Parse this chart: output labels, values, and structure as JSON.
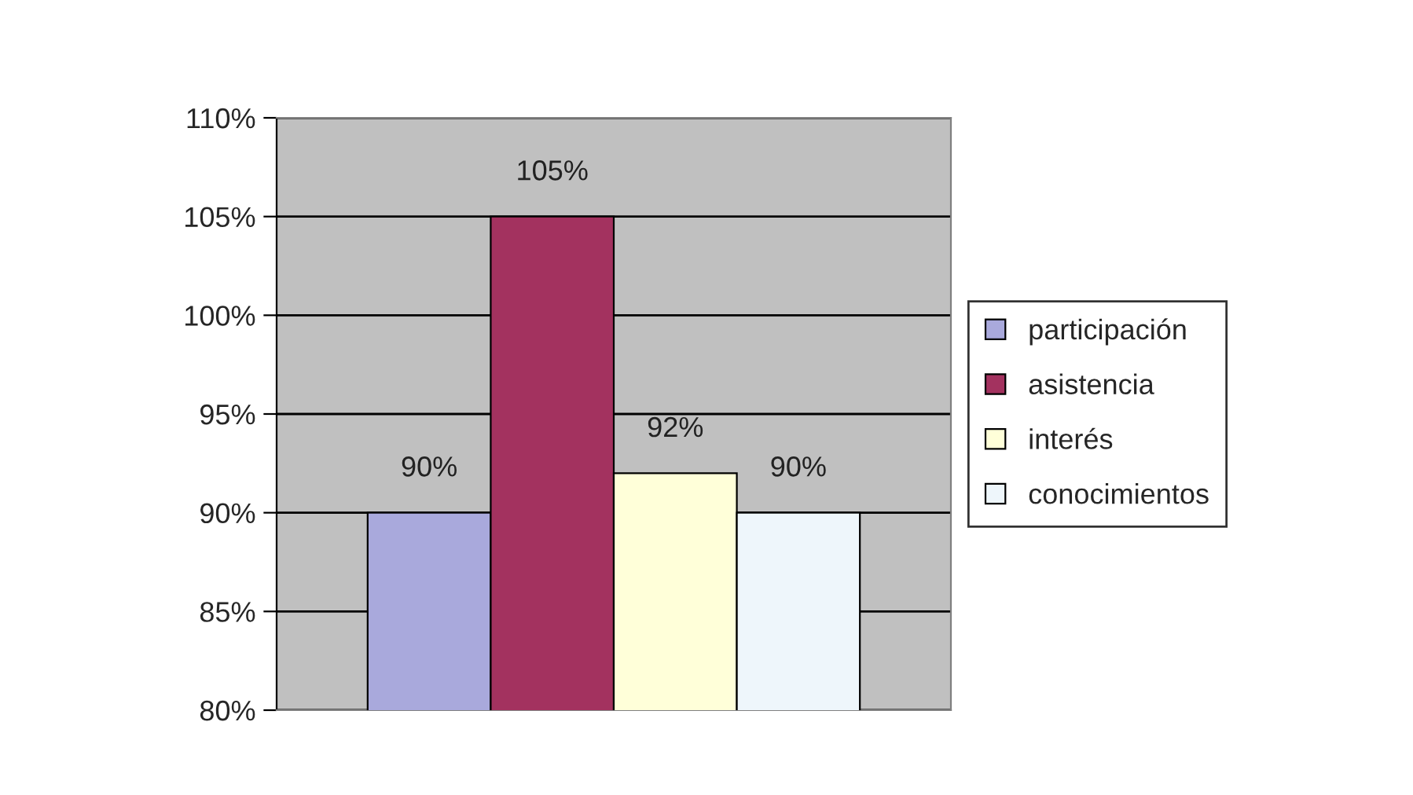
{
  "chart_data": {
    "type": "bar",
    "categories": [
      null
    ],
    "series": [
      {
        "name": "participación",
        "color": "#a9a9dc",
        "values": [
          90
        ],
        "value_labels": [
          "90%"
        ]
      },
      {
        "name": "asistencia",
        "color": "#a3325f",
        "values": [
          105
        ],
        "value_labels": [
          "105%"
        ]
      },
      {
        "name": "interés",
        "color": "#ffffd9",
        "values": [
          92
        ],
        "value_labels": [
          "92%"
        ]
      },
      {
        "name": "conocimientos",
        "color": "#eef6fb",
        "values": [
          90
        ],
        "value_labels": [
          "90%"
        ]
      }
    ],
    "ylim": [
      80,
      110
    ],
    "yticks": [
      {
        "value": 80,
        "label": "80%"
      },
      {
        "value": 85,
        "label": "85%"
      },
      {
        "value": 90,
        "label": "90%"
      },
      {
        "value": 95,
        "label": "95%"
      },
      {
        "value": 100,
        "label": "100%"
      },
      {
        "value": 105,
        "label": "105%"
      },
      {
        "value": 110,
        "label": "110%"
      }
    ],
    "grid": "y",
    "legend": "right"
  }
}
